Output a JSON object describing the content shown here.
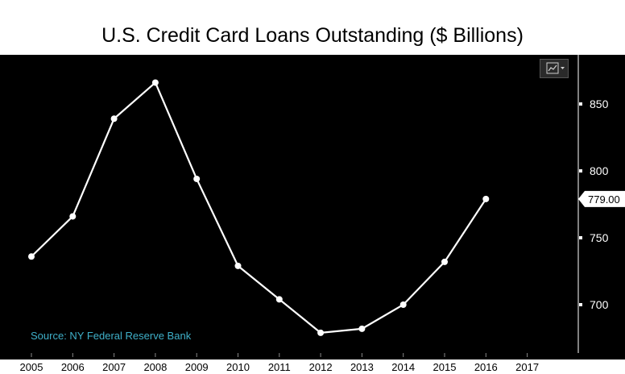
{
  "chart_data": {
    "type": "line",
    "title": "U.S. Credit Card Loans Outstanding ($ Billions)",
    "source": "Source: NY Federal Reserve Bank",
    "x_ticks": [
      "2005",
      "2006",
      "2007",
      "2008",
      "2009",
      "2010",
      "2011",
      "2012",
      "2013",
      "2014",
      "2015",
      "2016",
      "2017"
    ],
    "y_ticks": [
      700,
      750,
      800,
      850
    ],
    "ylim": [
      663,
      878
    ],
    "last_value_label": "779.00",
    "series": [
      {
        "x": [
          "2005",
          "2006",
          "2007",
          "2008",
          "2009",
          "2010",
          "2011",
          "2012",
          "2013",
          "2014",
          "2015",
          "2016"
        ],
        "values": [
          736,
          766,
          839,
          866,
          794,
          729,
          704,
          679,
          682,
          700,
          732,
          779
        ]
      }
    ],
    "colors": {
      "background": "#000000",
      "line": "#ffffff",
      "source_text": "#3fb0c9"
    },
    "grid": false
  },
  "ui": {
    "menu_icon": "chart-menu-icon"
  }
}
